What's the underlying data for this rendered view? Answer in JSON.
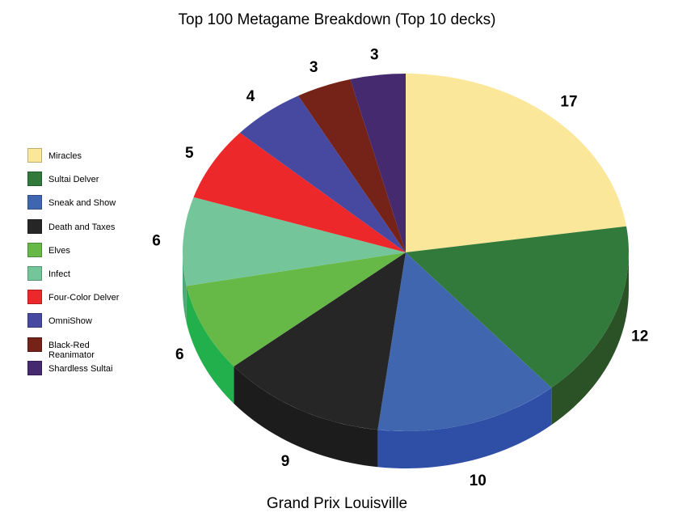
{
  "chart_data": {
    "type": "pie",
    "title": "Top 100 Metagame Breakdown (Top 10 decks)",
    "subtitle": "Grand Prix Louisville",
    "slices": [
      {
        "label": "Miracles",
        "value": 17,
        "color": "#FBE79A",
        "side": "#D9C577"
      },
      {
        "label": "Sultai Delver",
        "value": 12,
        "color": "#317A3B",
        "side": "#2A5226"
      },
      {
        "label": "Sneak and Show",
        "value": 10,
        "color": "#4166B0",
        "side": "#2F4FA6"
      },
      {
        "label": "Death and Taxes",
        "value": 9,
        "color": "#262626",
        "side": "#1C1C1C"
      },
      {
        "label": "Elves",
        "value": 6,
        "color": "#66B947",
        "side": "#21B04C"
      },
      {
        "label": "Infect",
        "value": 6,
        "color": "#74C69A",
        "side": "#4FA877"
      },
      {
        "label": "Four-Color Delver",
        "value": 5,
        "color": "#ED282A",
        "side": "#B81E20"
      },
      {
        "label": "OmniShow",
        "value": 4,
        "color": "#4749A0",
        "side": "#34367A"
      },
      {
        "label": "Black-Red Reanimator",
        "value": 3,
        "color": "#752318",
        "side": "#561910"
      },
      {
        "label": "Shardless Sultai",
        "value": 3,
        "color": "#452A6F",
        "side": "#321F52"
      }
    ],
    "legend_position": "left"
  }
}
